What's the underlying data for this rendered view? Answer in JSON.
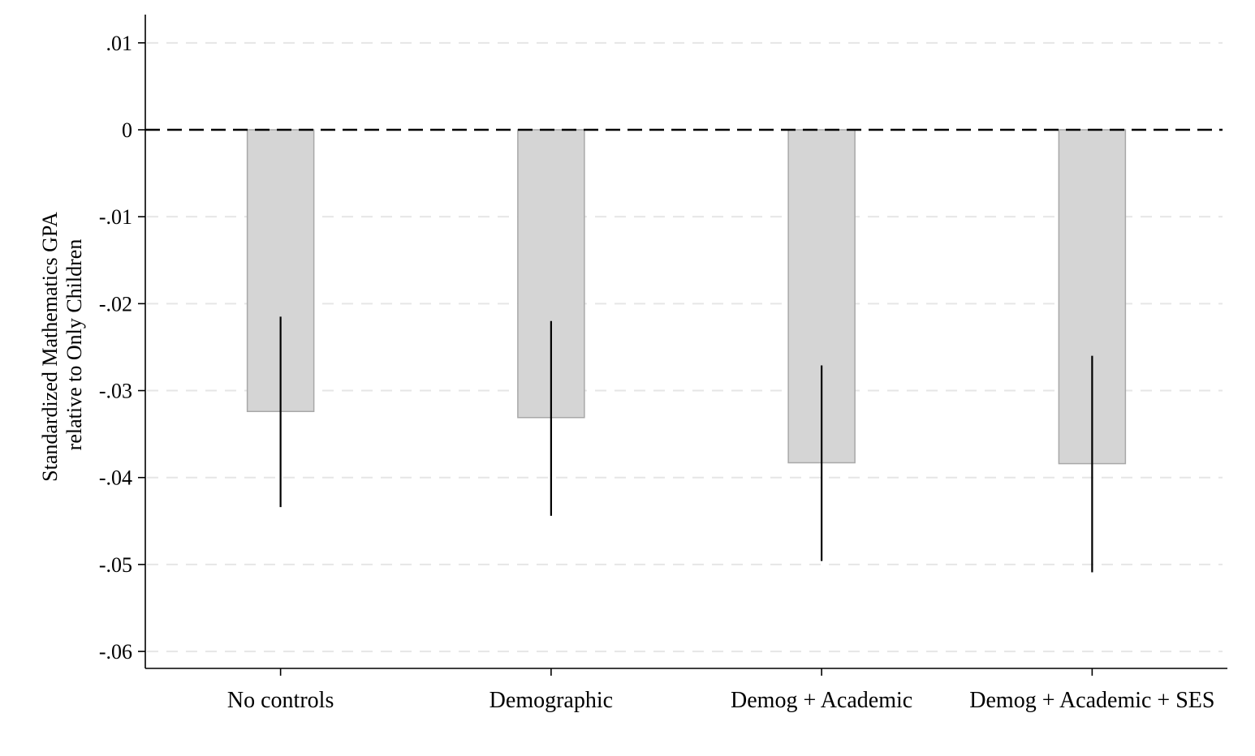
{
  "chart_data": {
    "type": "bar",
    "title": "",
    "xlabel": "",
    "ylabel_line1": "Standardized Mathematics GPA",
    "ylabel_line2": "relative to Only Children",
    "categories": [
      "No controls",
      "Demographic",
      "Demog + Academic",
      "Demog + Academic + SES"
    ],
    "values": [
      -0.0324,
      -0.0331,
      -0.0383,
      -0.0384
    ],
    "ci_low": [
      -0.0434,
      -0.0444,
      -0.0496,
      -0.0509
    ],
    "ci_high": [
      -0.0215,
      -0.022,
      -0.0271,
      -0.026
    ],
    "ylim": [
      -0.062,
      0.0105
    ],
    "yticks": [
      0.01,
      0,
      -0.01,
      -0.02,
      -0.03,
      -0.04,
      -0.05,
      -0.06
    ],
    "ytick_labels": [
      ".01",
      "0",
      "-.01",
      "-.02",
      "-.03",
      "-.04",
      "-.05",
      "-.06"
    ],
    "reference_line": 0,
    "grid": true,
    "colors": {
      "bar_fill": "#d5d5d5",
      "bar_edge": "#a8a8a8",
      "error_bar": "#000000",
      "grid": "#e6e6e6",
      "axis": "#000000"
    }
  }
}
